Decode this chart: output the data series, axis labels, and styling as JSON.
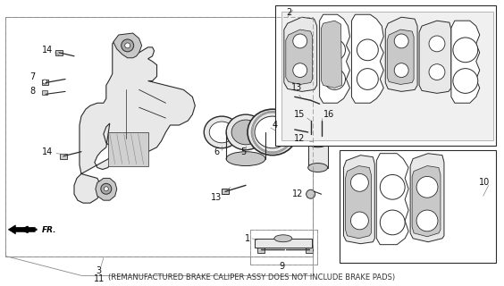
{
  "subtitle": "(REMANUFACTURED BRAKE CALIPER ASSY DOES NOT INCLUDE BRAKE PADS)",
  "background_color": "#ffffff",
  "fig_width": 5.64,
  "fig_height": 3.2,
  "dpi": 100,
  "line_color": "#2a2a2a",
  "text_color": "#111111",
  "subtitle_fontsize": 6.0,
  "label_fontsize": 7.0,
  "border_dash_color": "#666666",
  "part_gray": "#c8c8c8",
  "part_dark": "#888888",
  "part_light": "#e8e8e8"
}
